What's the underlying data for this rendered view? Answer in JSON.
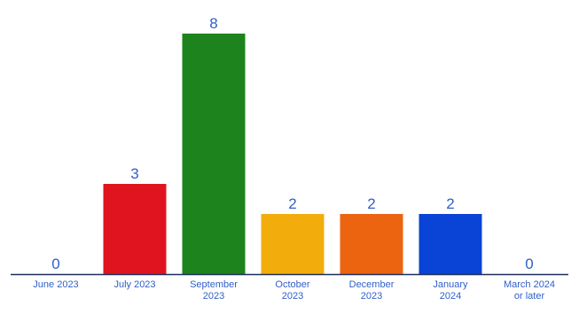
{
  "chart_data": {
    "type": "bar",
    "title": "",
    "xlabel": "",
    "ylabel": "",
    "ylim": [
      0,
      8
    ],
    "grid": false,
    "legend": "none",
    "categories": [
      [
        "June 2023"
      ],
      [
        "July 2023"
      ],
      [
        "September",
        "2023"
      ],
      [
        "October",
        "2023"
      ],
      [
        "December",
        "2023"
      ],
      [
        "January",
        "2024"
      ],
      [
        "March 2024",
        "or later"
      ]
    ],
    "values": [
      0,
      3,
      8,
      2,
      2,
      2,
      0
    ],
    "data_labels": [
      "0",
      "3",
      "8",
      "2",
      "2",
      "2",
      "0"
    ],
    "colors": [
      "#1a56d9",
      "#e0141e",
      "#1d831d",
      "#f2ad0c",
      "#ec6410",
      "#0a44d6",
      "#1a56d9"
    ],
    "label_color": "#2f5fc9",
    "axis_color": "#1f2f5c"
  }
}
